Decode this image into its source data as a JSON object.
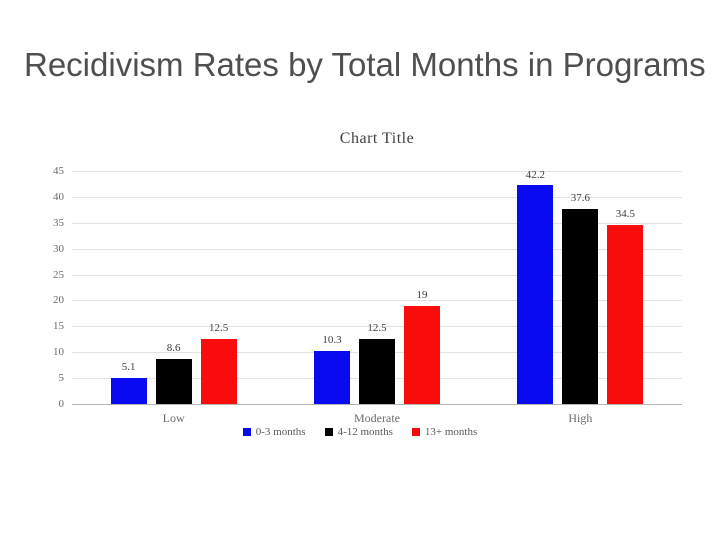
{
  "slide": {
    "title": "Recidivism Rates by Total Months in Programs",
    "background_color": "#ffffff",
    "title_color": "#4f4f4f"
  },
  "chart_data": {
    "type": "bar",
    "title": "Chart Title",
    "categories": [
      "Low",
      "Moderate",
      "High"
    ],
    "series": [
      {
        "name": "0-3 months",
        "color": "#0a0af0",
        "values": [
          5.1,
          10.3,
          42.2
        ]
      },
      {
        "name": "4-12 months",
        "color": "#000000",
        "values": [
          8.6,
          12.5,
          37.6
        ]
      },
      {
        "name": "13+ months",
        "color": "#f80c0c",
        "values": [
          12.5,
          19,
          34.5
        ]
      }
    ],
    "data_labels": [
      "5.1",
      "8.6",
      "12.5",
      "10.3",
      "12.5",
      "19",
      "42.2",
      "37.6",
      "34.5"
    ],
    "xlabel": "",
    "ylabel": "",
    "ylim": [
      0,
      45
    ],
    "ytick_step": 5,
    "yticks": [
      0,
      5,
      10,
      15,
      20,
      25,
      30,
      35,
      40,
      45
    ],
    "grid": true,
    "legend_position": "bottom",
    "colors": {
      "chart_title": "#404040",
      "axis_text": "#6b6b6b",
      "data_label_text": "#3d3d3d",
      "legend_text": "#5a5a5a",
      "gridline": "#e2e2e2",
      "baseline": "#b5b5b5"
    }
  }
}
